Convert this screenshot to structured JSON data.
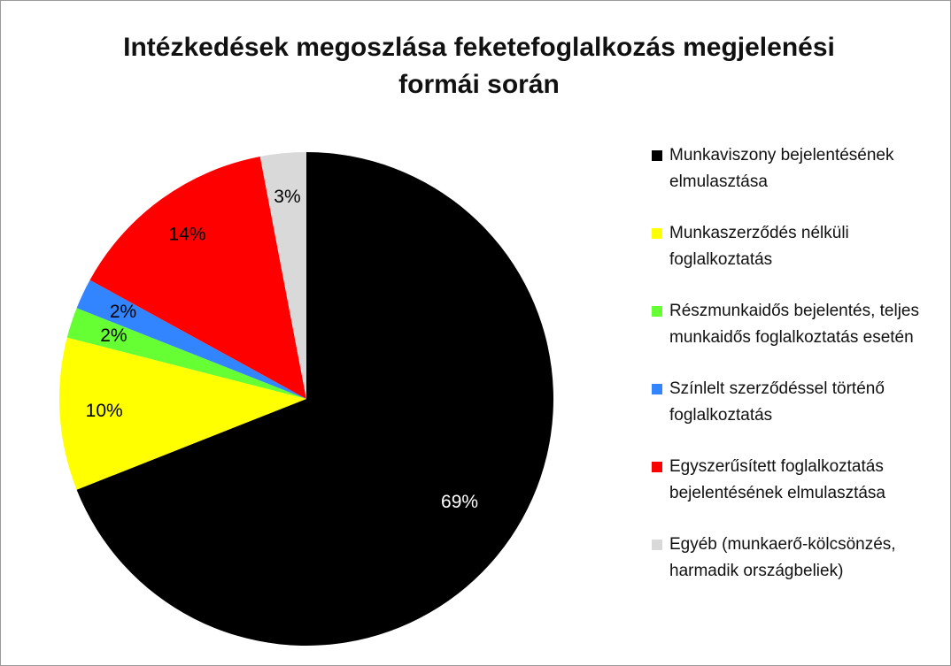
{
  "chart_data": {
    "type": "pie",
    "title": "Intézkedések megoszlása feketefoglalkozás megjelenési formái során",
    "categories": [
      "Munkaviszony bejelentésének elmulasztása",
      "Munkaszerződés nélküli foglalkoztatás",
      "Részmunkaidős bejelentés, teljes munkaidős foglalkoztatás esetén",
      "Színlelt szerződéssel történő foglalkoztatás",
      "Egyszerűsített foglalkoztatás bejelentésének elmulasztása",
      "Egyéb (munkaerő-kölcsönzés, harmadik országbeliek)"
    ],
    "values": [
      69,
      10,
      2,
      2,
      14,
      3
    ],
    "value_labels": [
      "69%",
      "10%",
      "2%",
      "2%",
      "14%",
      "3%"
    ],
    "colors": [
      "#000000",
      "#ffff00",
      "#66ff33",
      "#3385ff",
      "#ff0000",
      "#d9d9d9"
    ],
    "legend": "right"
  }
}
